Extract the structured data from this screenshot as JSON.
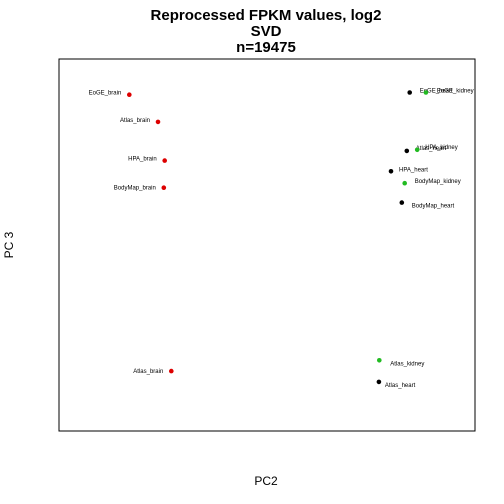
{
  "chart_data": {
    "type": "scatter",
    "title": [
      "Reprocessed FPKM values, log2",
      "SVD",
      "n=19475"
    ],
    "xlabel": "PC2",
    "ylabel": "PC 3",
    "xlim": [
      0,
      100
    ],
    "ylim": [
      0,
      100
    ],
    "grid": false,
    "axes_ticks": false,
    "colors": {
      "brain": "#dd0000",
      "heart": "#000000",
      "kidney": "#22bb22"
    },
    "points": [
      {
        "label": "EoGE_brain",
        "group": "brain",
        "x": 16.9,
        "y": 90.4
      },
      {
        "label": "Atlas_brain",
        "group": "brain",
        "x": 23.8,
        "y": 83.1
      },
      {
        "label": "HPA_brain",
        "group": "brain",
        "x": 25.4,
        "y": 72.7
      },
      {
        "label": "BodyMap_brain",
        "group": "brain",
        "x": 25.2,
        "y": 65.4
      },
      {
        "label": "Atlas_brain",
        "group": "brain",
        "x": 27.0,
        "y": 16.1
      },
      {
        "label": "EoGE_heart",
        "group": "heart",
        "x": 84.3,
        "y": 91.0
      },
      {
        "label": "EoGE_kidney",
        "group": "kidney",
        "x": 88.2,
        "y": 91.0
      },
      {
        "label": "Atlas_heart",
        "group": "heart",
        "x": 83.6,
        "y": 75.3
      },
      {
        "label": "HPA_kidney",
        "group": "kidney",
        "x": 86.1,
        "y": 75.6
      },
      {
        "label": "HPA_heart",
        "group": "heart",
        "x": 79.8,
        "y": 69.8
      },
      {
        "label": "BodyMap_kidney",
        "group": "kidney",
        "x": 83.1,
        "y": 66.6
      },
      {
        "label": "BodyMap_heart",
        "group": "heart",
        "x": 82.4,
        "y": 61.4
      },
      {
        "label": "Atlas_kidney",
        "group": "kidney",
        "x": 77.0,
        "y": 19.0
      },
      {
        "label": "Atlas_heart",
        "group": "heart",
        "x": 76.9,
        "y": 13.2
      }
    ]
  }
}
